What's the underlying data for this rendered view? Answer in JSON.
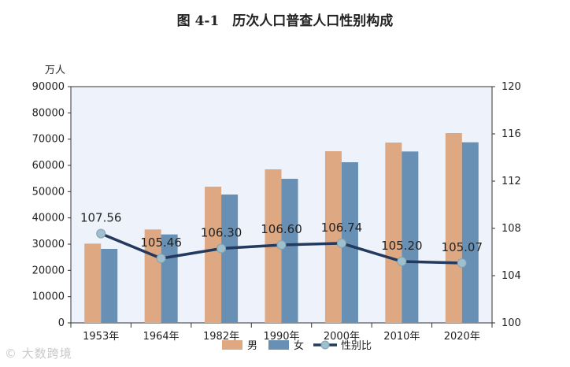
{
  "chart_data": {
    "type": "bar",
    "title": "图 4-1　历次人口普查人口性别构成",
    "ylabel": "万人",
    "categories": [
      "1953年",
      "1964年",
      "1982年",
      "1990年",
      "2000年",
      "2010年",
      "2020年"
    ],
    "series": [
      {
        "name": "男",
        "type": "bar",
        "axis": "left",
        "color": "#dea882",
        "values": [
          30200,
          35600,
          51900,
          58500,
          65400,
          68700,
          72300
        ]
      },
      {
        "name": "女",
        "type": "bar",
        "axis": "left",
        "color": "#6790b4",
        "values": [
          28200,
          33700,
          48900,
          54900,
          61200,
          65300,
          68800
        ]
      },
      {
        "name": "性别比",
        "type": "line",
        "axis": "right",
        "color": "#233a5e",
        "marker_color": "#9fbfcc",
        "values": [
          107.56,
          105.46,
          106.3,
          106.6,
          106.74,
          105.2,
          105.07
        ],
        "labels": [
          "107.56",
          "105.46",
          "106.30",
          "106.60",
          "106.74",
          "105.20",
          "105.07"
        ]
      }
    ],
    "ylim": [
      0,
      90000
    ],
    "yticks": [
      "0",
      "10000",
      "20000",
      "30000",
      "40000",
      "50000",
      "60000",
      "70000",
      "80000",
      "90000"
    ],
    "y2lim": [
      100,
      120
    ],
    "y2ticks": [
      "100",
      "104",
      "108",
      "112",
      "116",
      "120"
    ],
    "grid": false,
    "legend": "bottom"
  },
  "watermark": "大数跨境"
}
